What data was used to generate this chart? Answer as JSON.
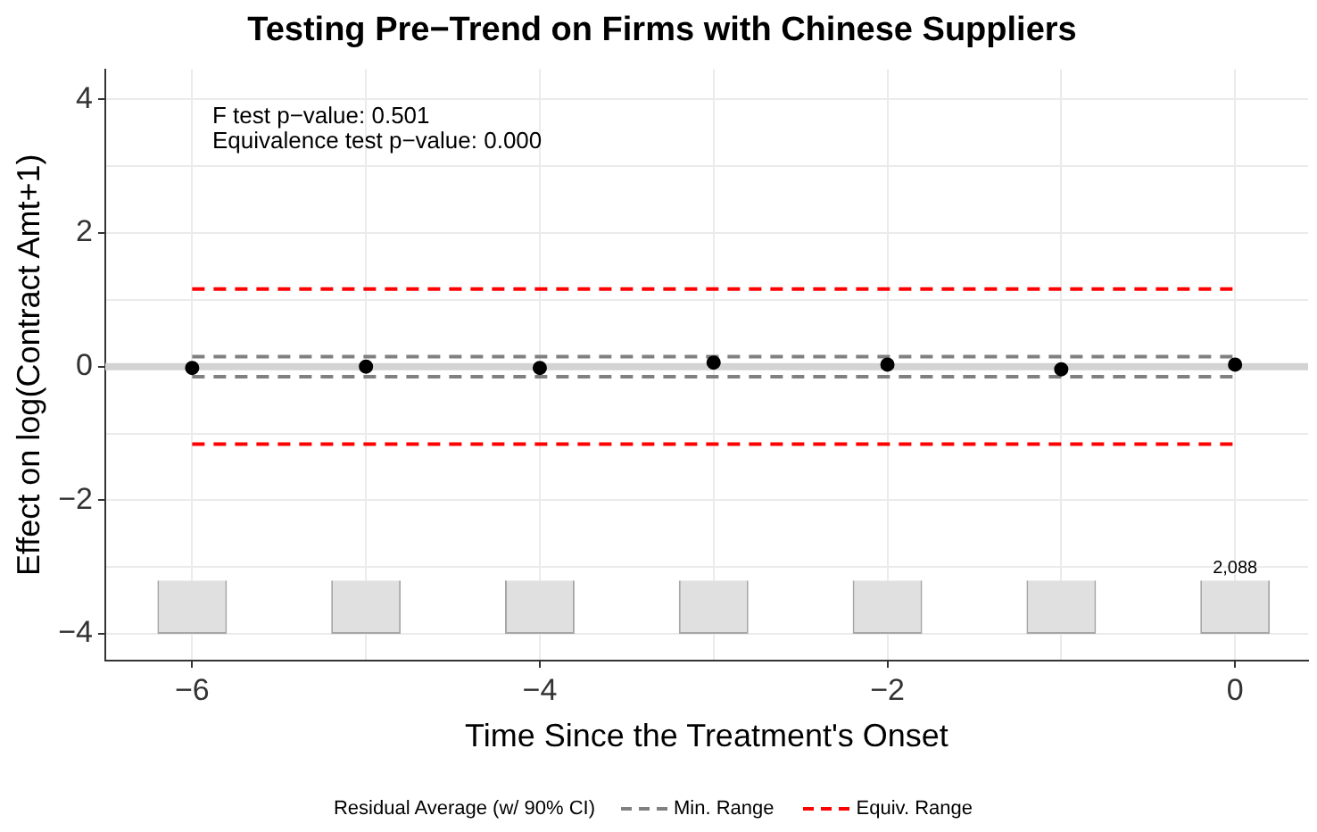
{
  "chart_data": {
    "type": "scatter",
    "title": "Testing Pre−Trend on Firms with Chinese Suppliers",
    "xlabel": "Time Since the Treatment's Onset",
    "ylabel": "Effect on log(Contract Amt+1)",
    "legend_title": "Residual Average (w/ 90% CI)",
    "annotations": [
      "F test p−value: 0.501",
      "Equivalence test p−value: 0.000",
      {
        "text": "2,088",
        "x": 0,
        "y": -3.2
      }
    ],
    "x": [
      -6,
      -5,
      -4,
      -3,
      -2,
      -1,
      0
    ],
    "series": [
      {
        "type": "bar",
        "color": "#e0e0e0",
        "x": [
          -6,
          -5,
          -4,
          -3,
          -2,
          -1,
          0
        ],
        "base": [
          -4,
          -4,
          -4,
          -4,
          -4,
          -4,
          -4
        ],
        "values": [
          0.8,
          0.8,
          0.8,
          0.8,
          0.8,
          0.8,
          0.8
        ]
      },
      {
        "type": "line",
        "name": "Min. Range",
        "color": "#808080",
        "line_style": "dashed",
        "marker": "none",
        "x": [
          -6,
          0
        ],
        "values": [
          0.15,
          0.15
        ]
      },
      {
        "type": "line",
        "color": "#808080",
        "line_style": "dashed",
        "marker": "none",
        "x": [
          -6,
          0
        ],
        "values": [
          -0.15,
          -0.15
        ]
      },
      {
        "type": "line",
        "name": "Equiv. Range",
        "color": "#ff0000",
        "line_style": "dashed",
        "marker": "none",
        "x": [
          -6,
          0
        ],
        "values": [
          1.16,
          1.16
        ]
      },
      {
        "type": "line",
        "color": "#ff0000",
        "line_style": "dashed",
        "marker": "none",
        "x": [
          -6,
          0
        ],
        "values": [
          -1.16,
          -1.16
        ]
      },
      {
        "color": "#000000",
        "marker": "circle",
        "values": [
          -0.02,
          0.0,
          -0.02,
          0.06,
          0.03,
          -0.04,
          0.03
        ]
      }
    ],
    "ref_lines": [
      {
        "axis": "y",
        "value": 0,
        "color": "#d3d3d3"
      }
    ],
    "xlim": [
      -6.5,
      0.42
    ],
    "ylim": [
      -4.4,
      4.45
    ],
    "xticks": [
      -6,
      {
        "value": -5,
        "label": null
      },
      -4,
      {
        "value": -3,
        "label": null
      },
      -2,
      {
        "value": -1,
        "label": null
      },
      0
    ],
    "yticks": [
      -4,
      {
        "value": -3,
        "label": null
      },
      -2,
      {
        "value": -1,
        "label": null
      },
      0,
      {
        "value": 1,
        "label": null
      },
      2,
      {
        "value": 3,
        "label": null
      },
      4
    ],
    "grid": true,
    "legend": "bottom"
  }
}
